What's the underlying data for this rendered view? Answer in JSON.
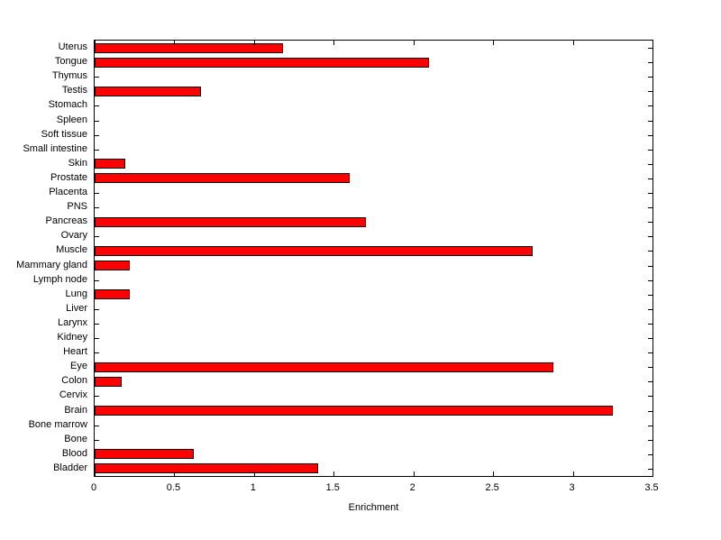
{
  "chart_data": {
    "type": "bar",
    "orientation": "horizontal",
    "title": "",
    "xlabel": "Enrichment",
    "ylabel": "",
    "xlim": [
      0,
      3.5
    ],
    "xticks": [
      0,
      0.5,
      1,
      1.5,
      2,
      2.5,
      3,
      3.5
    ],
    "xtick_labels": [
      "0",
      "0.5",
      "1",
      "1.5",
      "2",
      "2.5",
      "3",
      "3.5"
    ],
    "grid": false,
    "legend": null,
    "bar_color": "#ff0000",
    "bar_edge_color": "#000000",
    "categories": [
      "Uterus",
      "Tongue",
      "Thymus",
      "Testis",
      "Stomach",
      "Spleen",
      "Soft tissue",
      "Small intestine",
      "Skin",
      "Prostate",
      "Placenta",
      "PNS",
      "Pancreas",
      "Ovary",
      "Muscle",
      "Mammary gland",
      "Lymph node",
      "Lung",
      "Liver",
      "Larynx",
      "Kidney",
      "Heart",
      "Eye",
      "Colon",
      "Cervix",
      "Brain",
      "Bone marrow",
      "Bone",
      "Blood",
      "Bladder"
    ],
    "values": [
      1.18,
      2.1,
      0,
      0.67,
      0,
      0,
      0,
      0,
      0.19,
      1.6,
      0,
      0,
      1.7,
      0,
      2.75,
      0.22,
      0,
      0.22,
      0,
      0,
      0,
      0,
      2.88,
      0.17,
      0,
      3.25,
      0,
      0,
      0.62,
      1.4
    ],
    "categories_order": "top-to-bottom"
  }
}
